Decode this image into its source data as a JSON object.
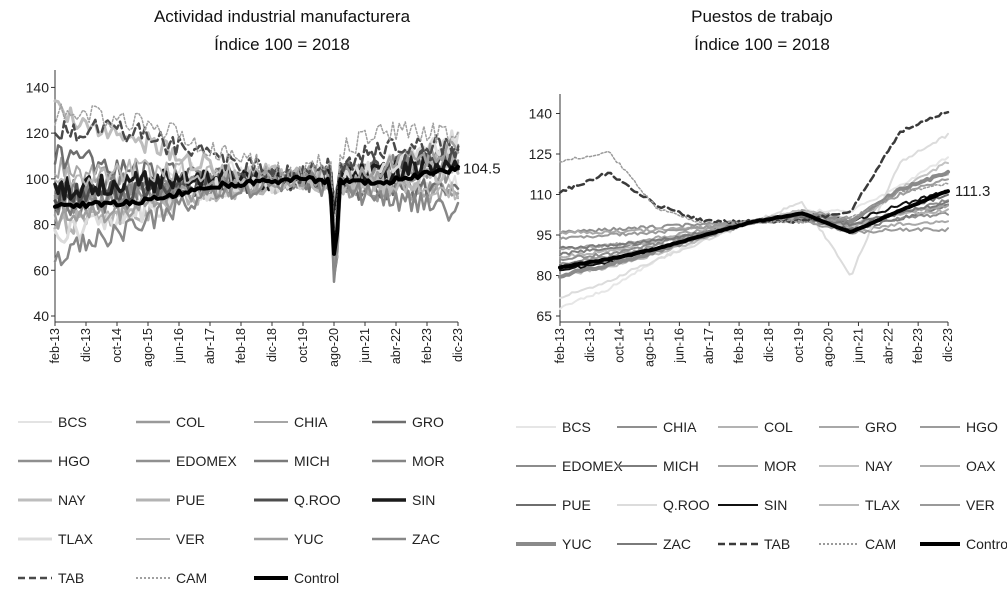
{
  "chart_data": [
    {
      "type": "line",
      "title": "Actividad industrial manufacturera",
      "subtitle": "Índice 100 = 2018",
      "x_ticks": [
        "feb-13",
        "dic-13",
        "oct-14",
        "ago-15",
        "jun-16",
        "abr-17",
        "feb-18",
        "dic-18",
        "oct-19",
        "ago-20",
        "jun-21",
        "abr-22",
        "feb-23",
        "dic-23"
      ],
      "x_range": [
        "feb-13",
        "dic-23"
      ],
      "ylim": [
        40,
        145
      ],
      "y_ticks": [
        40,
        60,
        80,
        100,
        120,
        140
      ],
      "end_label": "104.5",
      "legend_columns": 4,
      "series": [
        {
          "name": "BCS",
          "color": "#e3e3e3",
          "width": 2,
          "dash": "solid",
          "values": [
            95,
            100,
            103,
            101,
            100,
            98
          ]
        },
        {
          "name": "COL",
          "color": "#9a9a9a",
          "width": 2.5,
          "dash": "solid",
          "values": [
            90,
            92,
            96,
            100,
            95,
            98
          ]
        },
        {
          "name": "CHIA",
          "color": "#a6a6a6",
          "width": 2,
          "dash": "solid",
          "values": [
            105,
            98,
            96,
            100,
            97,
            92
          ]
        },
        {
          "name": "GRO",
          "color": "#6e6e6e",
          "width": 2.5,
          "dash": "solid",
          "values": [
            110,
            104,
            100,
            100,
            94,
            96
          ]
        },
        {
          "name": "HGO",
          "color": "#8f8f8f",
          "width": 2.5,
          "dash": "solid",
          "values": [
            88,
            94,
            98,
            100,
            100,
            108
          ]
        },
        {
          "name": "EDOMEX",
          "color": "#909090",
          "width": 2.5,
          "dash": "solid",
          "values": [
            92,
            95,
            98,
            100,
            98,
            104
          ]
        },
        {
          "name": "MICH",
          "color": "#7a7a7a",
          "width": 2.5,
          "dash": "solid",
          "values": [
            85,
            92,
            97,
            100,
            103,
            110
          ]
        },
        {
          "name": "MOR",
          "color": "#858585",
          "width": 2.5,
          "dash": "solid",
          "values": [
            95,
            98,
            100,
            100,
            104,
            112
          ]
        },
        {
          "name": "NAY",
          "color": "#bdbdbd",
          "width": 3,
          "dash": "solid",
          "values": [
            130,
            118,
            104,
            100,
            98,
            102
          ]
        },
        {
          "name": "PUE",
          "color": "#b3b3b3",
          "width": 3,
          "dash": "solid",
          "values": [
            80,
            85,
            95,
            100,
            100,
            112
          ]
        },
        {
          "name": "Q.ROO",
          "color": "#4d4d4d",
          "width": 3,
          "dash": "solid",
          "values": [
            92,
            95,
            98,
            100,
            105,
            112
          ]
        },
        {
          "name": "SIN",
          "color": "#1a1a1a",
          "width": 3.5,
          "dash": "solid",
          "values": [
            95,
            98,
            100,
            100,
            102,
            108
          ]
        },
        {
          "name": "TLAX",
          "color": "#dcdcdc",
          "width": 3,
          "dash": "solid",
          "values": [
            75,
            85,
            96,
            100,
            104,
            118
          ]
        },
        {
          "name": "VER",
          "color": "#b8b8b8",
          "width": 2,
          "dash": "solid",
          "values": [
            100,
            104,
            102,
            100,
            96,
            94
          ]
        },
        {
          "name": "YUC",
          "color": "#9e9e9e",
          "width": 2.5,
          "dash": "solid",
          "values": [
            82,
            88,
            96,
            100,
            104,
            114
          ]
        },
        {
          "name": "ZAC",
          "color": "#888888",
          "width": 2.5,
          "dash": "solid",
          "values": [
            66,
            80,
            94,
            100,
            92,
            86
          ]
        },
        {
          "name": "TAB",
          "color": "#4a4a4a",
          "width": 2.5,
          "dash": "dashed",
          "values": [
            122,
            120,
            108,
            100,
            112,
            116
          ]
        },
        {
          "name": "CAM",
          "color": "#a0a0a0",
          "width": 1.5,
          "dash": "dotted",
          "values": [
            128,
            126,
            112,
            100,
            122,
            120
          ]
        },
        {
          "name": "Control",
          "color": "#000000",
          "width": 4,
          "dash": "solid",
          "values": [
            88,
            90,
            97,
            100,
            98,
            104.5
          ]
        }
      ]
    },
    {
      "type": "line",
      "title": "Puestos de trabajo",
      "subtitle": "Índice 100 = 2018",
      "x_ticks": [
        "feb-13",
        "dic-13",
        "oct-14",
        "ago-15",
        "jun-16",
        "abr-17",
        "feb-18",
        "dic-18",
        "oct-19",
        "ago-20",
        "jun-21",
        "abr-22",
        "feb-23",
        "dic-23"
      ],
      "x_range": [
        "feb-13",
        "dic-23"
      ],
      "ylim": [
        65,
        145
      ],
      "y_ticks": [
        65,
        80,
        95,
        110,
        125,
        140
      ],
      "end_label": "111.3",
      "legend_columns": 5,
      "series": [
        {
          "name": "BCS",
          "color": "#e6e6e6",
          "width": 2,
          "dash": "solid",
          "values": [
            68,
            75,
            86,
            94,
            100,
            104,
            104,
            113,
            124
          ]
        },
        {
          "name": "CHIA",
          "color": "#8f8f8f",
          "width": 2,
          "dash": "solid",
          "values": [
            96,
            97,
            98,
            99,
            100,
            101,
            99,
            101,
            103
          ]
        },
        {
          "name": "COL",
          "color": "#b3b3b3",
          "width": 2,
          "dash": "solid",
          "values": [
            87,
            89,
            93,
            96,
            100,
            101,
            98,
            103,
            106
          ]
        },
        {
          "name": "GRO",
          "color": "#a8a8a8",
          "width": 2,
          "dash": "solid",
          "values": [
            96,
            96,
            97,
            98,
            100,
            101,
            96,
            99,
            100
          ]
        },
        {
          "name": "HGO",
          "color": "#9c9c9c",
          "width": 2,
          "dash": "solid",
          "values": [
            84,
            87,
            91,
            95,
            100,
            104,
            101,
            110,
            116
          ]
        },
        {
          "name": "EDOMEX",
          "color": "#8c8c8c",
          "width": 2,
          "dash": "solid",
          "values": [
            86,
            88,
            92,
            96,
            100,
            102,
            97,
            103,
            108
          ]
        },
        {
          "name": "MICH",
          "color": "#7d7d7d",
          "width": 2,
          "dash": "solid",
          "values": [
            88,
            90,
            93,
            96,
            100,
            101,
            97,
            101,
            106
          ]
        },
        {
          "name": "MOR",
          "color": "#a4a4a4",
          "width": 2,
          "dash": "solid",
          "values": [
            90,
            91,
            94,
            97,
            100,
            101,
            98,
            103,
            106
          ]
        },
        {
          "name": "NAY",
          "color": "#c2c2c2",
          "width": 2,
          "dash": "solid",
          "values": [
            82,
            85,
            90,
            95,
            100,
            103,
            97,
            112,
            122
          ]
        },
        {
          "name": "OAX",
          "color": "#b0b0b0",
          "width": 2,
          "dash": "solid",
          "values": [
            90,
            91,
            93,
            96,
            100,
            101,
            99,
            103,
            104
          ]
        },
        {
          "name": "PUE",
          "color": "#6e6e6e",
          "width": 2,
          "dash": "solid",
          "values": [
            84,
            86,
            90,
            95,
            100,
            102,
            97,
            104,
            110
          ]
        },
        {
          "name": "Q.ROO",
          "color": "#dcdcdc",
          "width": 2,
          "dash": "solid",
          "values": [
            72,
            78,
            86,
            93,
            100,
            107,
            80,
            122,
            132
          ]
        },
        {
          "name": "SIN",
          "color": "#111111",
          "width": 2,
          "dash": "solid",
          "values": [
            82,
            85,
            90,
            95,
            100,
            103,
            100,
            106,
            111.5
          ]
        },
        {
          "name": "TLAX",
          "color": "#bbbbbb",
          "width": 2,
          "dash": "solid",
          "values": [
            80,
            83,
            88,
            94,
            100,
            104,
            100,
            112,
            118
          ]
        },
        {
          "name": "VER",
          "color": "#9a9a9a",
          "width": 2,
          "dash": "solid",
          "values": [
            94,
            95,
            96,
            98,
            100,
            100,
            96,
            97,
            97
          ]
        },
        {
          "name": "YUC",
          "color": "#8a8a8a",
          "width": 4,
          "dash": "solid",
          "values": [
            80,
            84,
            89,
            95,
            100,
            103,
            100,
            112,
            118
          ]
        },
        {
          "name": "ZAC",
          "color": "#7a7a7a",
          "width": 2,
          "dash": "solid",
          "values": [
            90,
            91,
            93,
            96,
            100,
            101,
            99,
            103,
            107
          ]
        },
        {
          "name": "TAB",
          "color": "#3a3a3a",
          "width": 2.5,
          "dash": "dashed",
          "values": [
            111,
            118,
            106,
            100,
            100,
            100,
            104,
            133,
            141
          ]
        },
        {
          "name": "CAM",
          "color": "#9a9a9a",
          "width": 1.5,
          "dash": "dotted",
          "values": [
            122,
            126,
            105,
            99,
            100,
            100,
            101,
            111,
            114
          ]
        },
        {
          "name": "Control",
          "color": "#000000",
          "width": 4,
          "dash": "solid",
          "values": [
            83,
            86,
            90,
            95,
            100,
            103,
            96,
            104,
            111.3
          ]
        }
      ]
    }
  ]
}
